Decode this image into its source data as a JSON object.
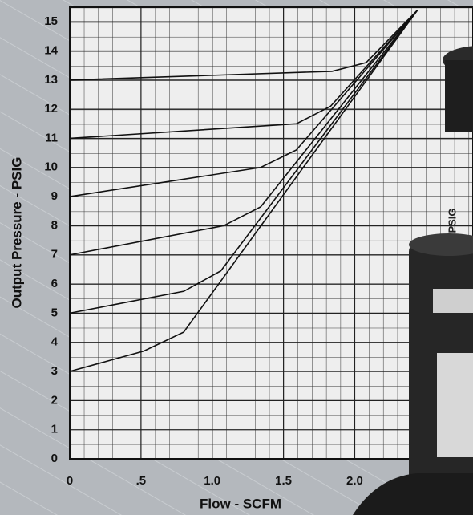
{
  "chart_data": {
    "type": "line",
    "x_label": "Flow - SCFM",
    "y_label": "Output Pressure - PSIG",
    "photo_label": "PSIG",
    "xlim": [
      0,
      2.83
    ],
    "ylim": [
      0,
      15.5
    ],
    "xticks": [
      0,
      {
        "value": 0.5,
        "label": ".5"
      },
      {
        "value": 1.0,
        "label": "1.0"
      },
      {
        "value": 1.5,
        "label": "1.5"
      },
      {
        "value": 2.0,
        "label": "2.0"
      }
    ],
    "yticks": [
      0,
      1,
      2,
      3,
      4,
      5,
      6,
      7,
      8,
      9,
      10,
      11,
      12,
      13,
      14,
      15
    ],
    "grid": true,
    "series": [
      {
        "color": "#111111",
        "x": [
          0,
          1.84,
          2.08,
          2.44
        ],
        "values": [
          13,
          13.3,
          13.6,
          15.4
        ]
      },
      {
        "color": "#111111",
        "x": [
          0,
          1.59,
          1.83,
          2.44
        ],
        "values": [
          11,
          11.5,
          12.1,
          15.4
        ]
      },
      {
        "color": "#111111",
        "x": [
          0,
          1.34,
          1.59,
          2.44
        ],
        "values": [
          9,
          10,
          10.6,
          15.4
        ]
      },
      {
        "color": "#111111",
        "x": [
          0,
          1.08,
          1.34,
          2.44
        ],
        "values": [
          7,
          8,
          8.65,
          15.4
        ]
      },
      {
        "color": "#111111",
        "x": [
          0,
          0.8,
          1.06,
          2.44
        ],
        "values": [
          5,
          5.75,
          6.45,
          15.4
        ]
      },
      {
        "color": "#111111",
        "x": [
          0,
          0.52,
          0.8,
          2.44
        ],
        "values": [
          3,
          3.7,
          4.35,
          15.4
        ]
      }
    ]
  }
}
